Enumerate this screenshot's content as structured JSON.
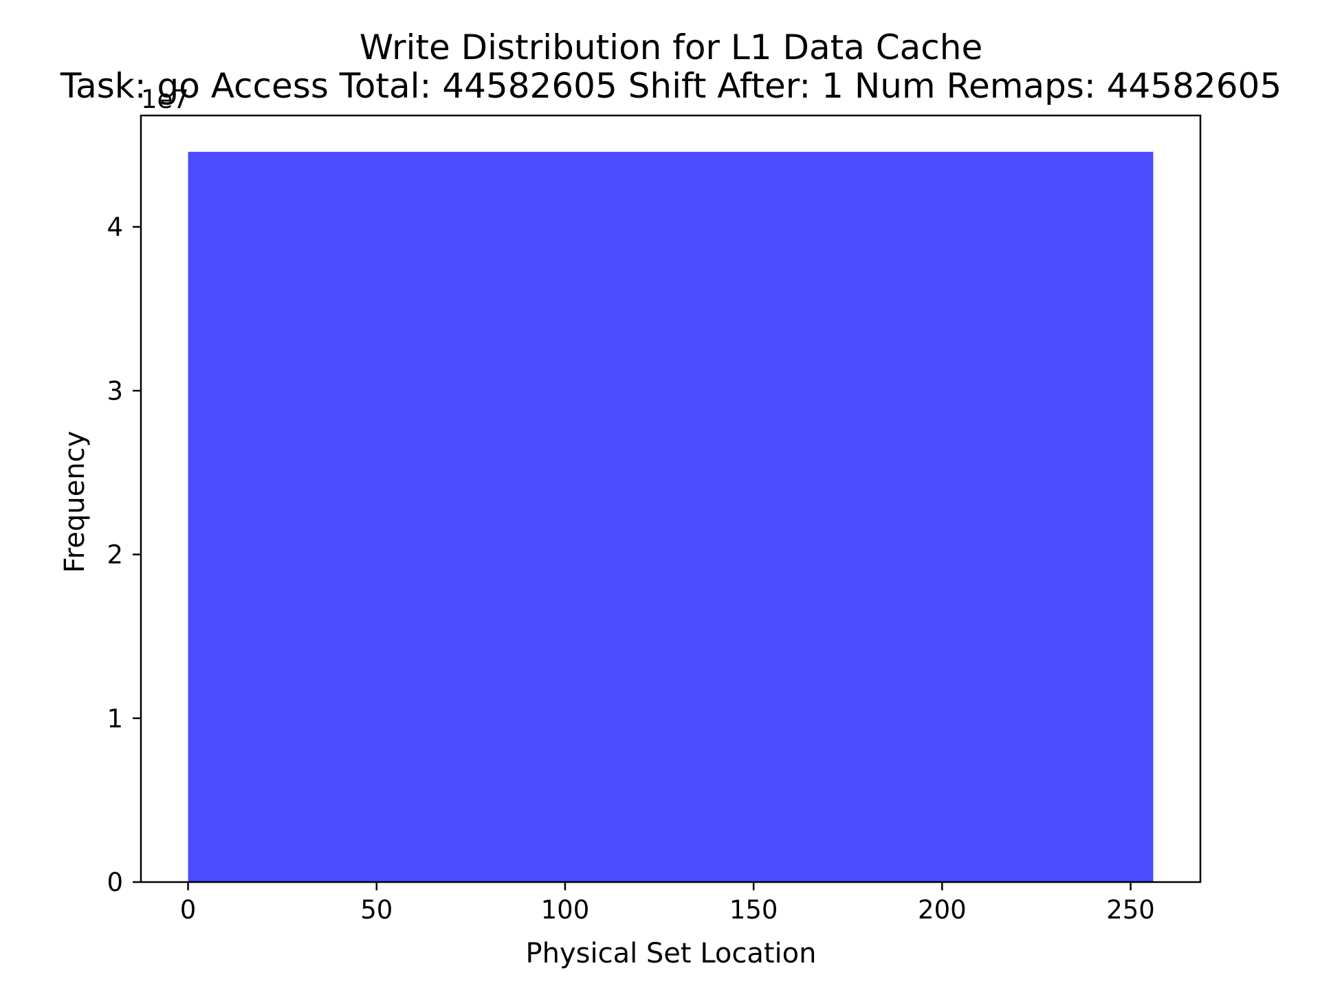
{
  "chart_data": {
    "type": "bar",
    "title": "Write Distribution for L1 Data Cache",
    "subtitle": "Task: go Access Total: 44582605 Shift After: 1 Num Remaps: 44582605",
    "xlabel": "Physical Set Location",
    "ylabel": "Frequency",
    "y_offset_label": "1e7",
    "y_multiplier": 10000000,
    "xlim": [
      -12.5,
      268.5
    ],
    "ylim": [
      0,
      46800000
    ],
    "xticks": [
      0,
      50,
      100,
      150,
      200,
      250
    ],
    "xtick_labels": [
      "0",
      "50",
      "100",
      "150",
      "200",
      "250"
    ],
    "yticks": [
      0,
      10000000,
      20000000,
      30000000,
      40000000
    ],
    "ytick_labels": [
      "0",
      "1",
      "2",
      "3",
      "4"
    ],
    "bars": [
      {
        "x_start": 0,
        "x_end": 256,
        "value": 44582605
      }
    ],
    "bar_color": "#4b4bff",
    "grid": false,
    "legend": false
  }
}
